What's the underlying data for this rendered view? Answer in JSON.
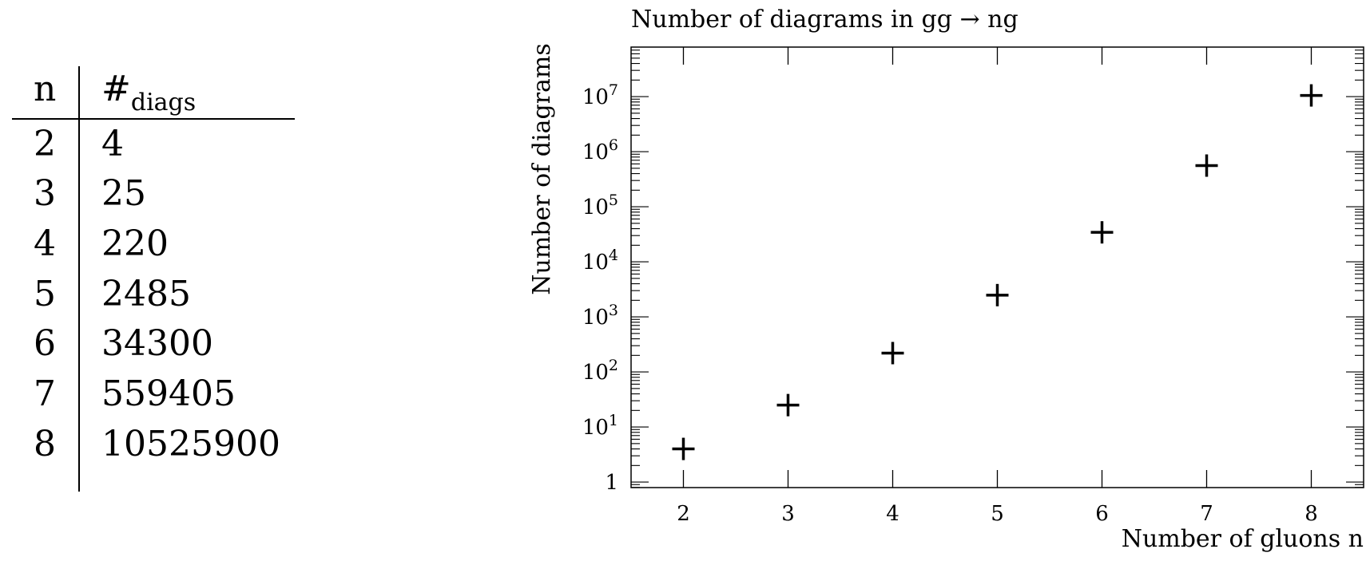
{
  "table": {
    "header_n": "n",
    "header_diags_symbol": "#",
    "header_diags_sub": "diags",
    "rows": [
      {
        "n": "2",
        "value": "4"
      },
      {
        "n": "3",
        "value": "25"
      },
      {
        "n": "4",
        "value": "220"
      },
      {
        "n": "5",
        "value": "2485"
      },
      {
        "n": "6",
        "value": "34300"
      },
      {
        "n": "7",
        "value": "559405"
      },
      {
        "n": "8",
        "value": "10525900"
      }
    ]
  },
  "chart_data": {
    "type": "scatter",
    "title": "Number of diagrams in gg → ng",
    "xlabel": "Number of gluons n",
    "ylabel": "Number of diagrams",
    "x": [
      2,
      3,
      4,
      5,
      6,
      7,
      8
    ],
    "y": [
      4,
      25,
      220,
      2485,
      34300,
      559405,
      10525900
    ],
    "xlim": [
      1.5,
      8.5
    ],
    "ylim_log10": [
      -0.1,
      7.9
    ],
    "yscale": "log",
    "x_ticks": [
      2,
      3,
      4,
      5,
      6,
      7,
      8
    ],
    "y_ticks": [
      {
        "base": "1",
        "exp": ""
      },
      {
        "base": "10",
        "exp": "1"
      },
      {
        "base": "10",
        "exp": "2"
      },
      {
        "base": "10",
        "exp": "3"
      },
      {
        "base": "10",
        "exp": "4"
      },
      {
        "base": "10",
        "exp": "5"
      },
      {
        "base": "10",
        "exp": "6"
      },
      {
        "base": "10",
        "exp": "7"
      }
    ],
    "marker": "plus",
    "grid": false
  }
}
